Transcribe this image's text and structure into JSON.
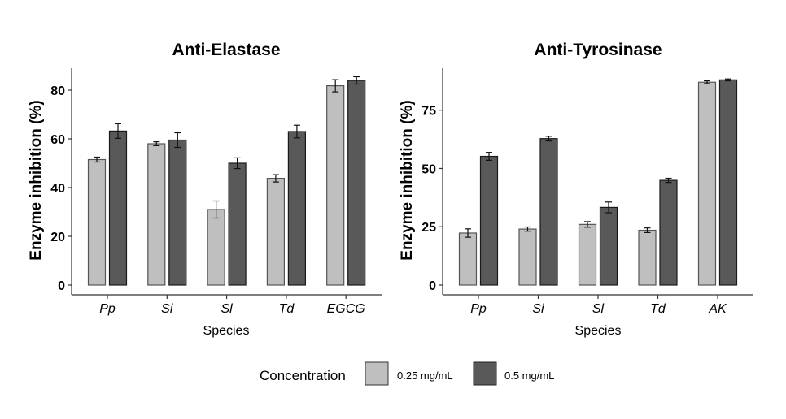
{
  "chart_data": [
    {
      "type": "bar",
      "title": "Anti-Elastase",
      "xlabel": "Species",
      "ylabel": "Enzyme inhibition (%)",
      "categories": [
        "Pp",
        "Si",
        "Sl",
        "Td",
        "EGCG"
      ],
      "ylim": [
        -3,
        89
      ],
      "yticks": [
        0,
        20,
        40,
        60,
        80
      ],
      "grid": false,
      "series": [
        {
          "name": "0.25 mg/mL",
          "values": [
            51.5,
            58.0,
            31.0,
            43.8,
            81.8
          ],
          "errors": [
            1.0,
            0.8,
            3.5,
            1.5,
            2.5
          ]
        },
        {
          "name": "0.5 mg/mL",
          "values": [
            63.2,
            59.5,
            50.0,
            63.0,
            84.0
          ],
          "errors": [
            3.0,
            3.0,
            2.2,
            2.6,
            1.5
          ]
        }
      ]
    },
    {
      "type": "bar",
      "title": "Anti-Tyrosinase",
      "xlabel": "Species",
      "ylabel": "Enzyme inhibition (%)",
      "categories": [
        "Pp",
        "Si",
        "Sl",
        "Td",
        "AK"
      ],
      "ylim": [
        -4,
        93
      ],
      "yticks": [
        0,
        25,
        50,
        75
      ],
      "grid": false,
      "series": [
        {
          "name": "0.25 mg/mL",
          "values": [
            22.3,
            24.0,
            26.0,
            23.5,
            87.0
          ],
          "errors": [
            1.8,
            0.9,
            1.2,
            1.0,
            0.6
          ]
        },
        {
          "name": "0.5 mg/mL",
          "values": [
            55.2,
            62.8,
            33.3,
            44.9,
            88.0
          ],
          "errors": [
            1.7,
            1.0,
            2.3,
            0.9,
            0.4
          ]
        }
      ]
    }
  ],
  "legend": {
    "title": "Concentration",
    "position": "bottom",
    "items": [
      {
        "label": "0.25 mg/mL",
        "color": "#bfbfbf"
      },
      {
        "label": "0.5 mg/mL",
        "color": "#595959"
      }
    ]
  },
  "colors": {
    "series": [
      "#bfbfbf",
      "#595959"
    ],
    "outline_light": "#555555",
    "outline_dark": "#1a1a1a",
    "axis": "#333333",
    "text": "#000000"
  }
}
